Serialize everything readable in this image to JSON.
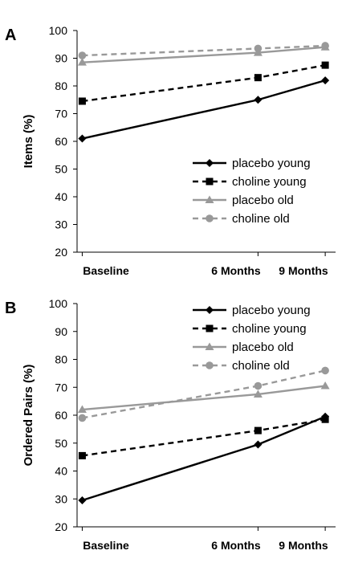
{
  "chart_data": [
    {
      "type": "line",
      "panel_label": "A",
      "ylabel": "Items (%)",
      "xlabel": "",
      "categories": [
        "Baseline",
        "6 Months",
        "9 Months"
      ],
      "x_positions_months": [
        0,
        6,
        9
      ],
      "ylim": [
        20,
        100
      ],
      "yticks": [
        20,
        30,
        40,
        50,
        60,
        70,
        80,
        90,
        100
      ],
      "grid": false,
      "legend_position": "bottom-right",
      "series": [
        {
          "name": "placebo young",
          "values": [
            61,
            75,
            82
          ],
          "color": "#000000",
          "dash": "solid",
          "marker": "diamond"
        },
        {
          "name": "choline young",
          "values": [
            74.5,
            83,
            87.5
          ],
          "color": "#000000",
          "dash": "dashed",
          "marker": "square"
        },
        {
          "name": "placebo old",
          "values": [
            88.5,
            92,
            94
          ],
          "color": "#999999",
          "dash": "solid",
          "marker": "triangle"
        },
        {
          "name": "choline old",
          "values": [
            91,
            93.5,
            94.5
          ],
          "color": "#999999",
          "dash": "dashed",
          "marker": "circle"
        }
      ]
    },
    {
      "type": "line",
      "panel_label": "B",
      "ylabel": "Ordered Pairs (%)",
      "xlabel": "",
      "categories": [
        "Baseline",
        "6 Months",
        "9 Months"
      ],
      "x_positions_months": [
        0,
        6,
        9
      ],
      "ylim": [
        20,
        100
      ],
      "yticks": [
        20,
        30,
        40,
        50,
        60,
        70,
        80,
        90,
        100
      ],
      "grid": false,
      "legend_position": "top-right",
      "series": [
        {
          "name": "placebo young",
          "values": [
            29.5,
            49.5,
            59.5
          ],
          "color": "#000000",
          "dash": "solid",
          "marker": "diamond"
        },
        {
          "name": "choline young",
          "values": [
            45.5,
            54.5,
            58.5
          ],
          "color": "#000000",
          "dash": "dashed",
          "marker": "square"
        },
        {
          "name": "placebo old",
          "values": [
            62,
            67.5,
            70.5
          ],
          "color": "#999999",
          "dash": "solid",
          "marker": "triangle"
        },
        {
          "name": "choline old",
          "values": [
            59,
            70.5,
            76
          ],
          "color": "#999999",
          "dash": "dashed",
          "marker": "circle"
        }
      ]
    }
  ]
}
